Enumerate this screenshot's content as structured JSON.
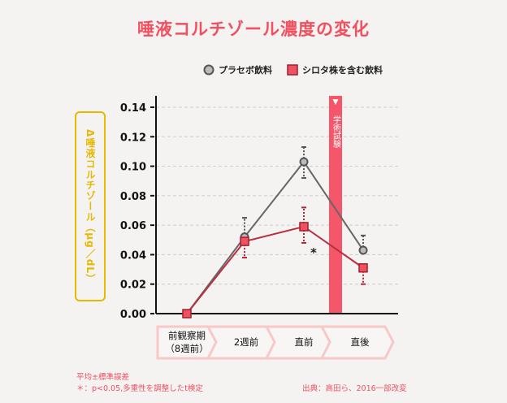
{
  "title": "唾液コルチゾール濃度の変化",
  "chart_data": {
    "type": "line",
    "title": "唾液コルチゾール濃度の変化",
    "ylabel": "Δ唾液コルチゾール（μg／dL）",
    "ylim": [
      0,
      0.14
    ],
    "yticks": [
      "0.00",
      "0.02",
      "0.04",
      "0.06",
      "0.08",
      "0.10",
      "0.12",
      "0.14"
    ],
    "categories": [
      "前観察期（8週前）",
      "2週前",
      "直前",
      "直後"
    ],
    "grid": true,
    "legend": "top-right",
    "series": [
      {
        "name": "プラセボ飲料",
        "color": "#666666",
        "values": [
          0,
          0.052,
          0.103,
          0.043
        ],
        "err_upper": [
          null,
          0.065,
          0.113,
          0.053
        ],
        "err_lower": [
          null,
          null,
          0.092,
          null
        ]
      },
      {
        "name": "シロタ株を含む飲料",
        "color": "#f0505f",
        "values": [
          0,
          0.049,
          0.059,
          0.031
        ],
        "err_upper": [
          null,
          null,
          0.072,
          null
        ],
        "err_lower": [
          null,
          0.038,
          0.048,
          0.02
        ]
      }
    ],
    "annotations": {
      "exam": "学術試験",
      "significance": "*"
    }
  },
  "notes": {
    "mean": "平均±標準誤差",
    "sig": "＊：p<0.05,多重性を調整したt検定",
    "source": "出典：高田ら、2016一部改変"
  }
}
